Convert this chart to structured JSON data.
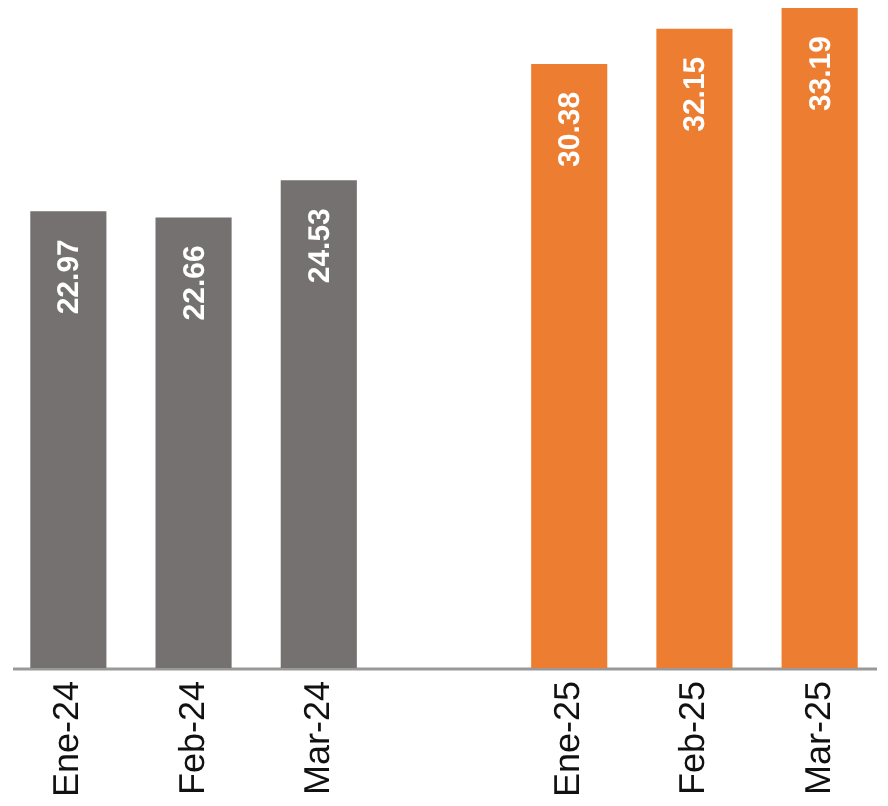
{
  "chart_data": {
    "type": "bar",
    "categories": [
      "Ene-24",
      "Feb-24",
      "Mar-24",
      null,
      "Ene-25",
      "Feb-25",
      "Mar-25"
    ],
    "values": [
      22.97,
      22.66,
      24.53,
      null,
      30.38,
      32.15,
      33.19
    ],
    "colors": [
      "#767171",
      "#767171",
      "#767171",
      "#767171",
      "#ed7d31",
      "#ed7d31",
      "#ed7d31"
    ],
    "data_labels": true
  }
}
